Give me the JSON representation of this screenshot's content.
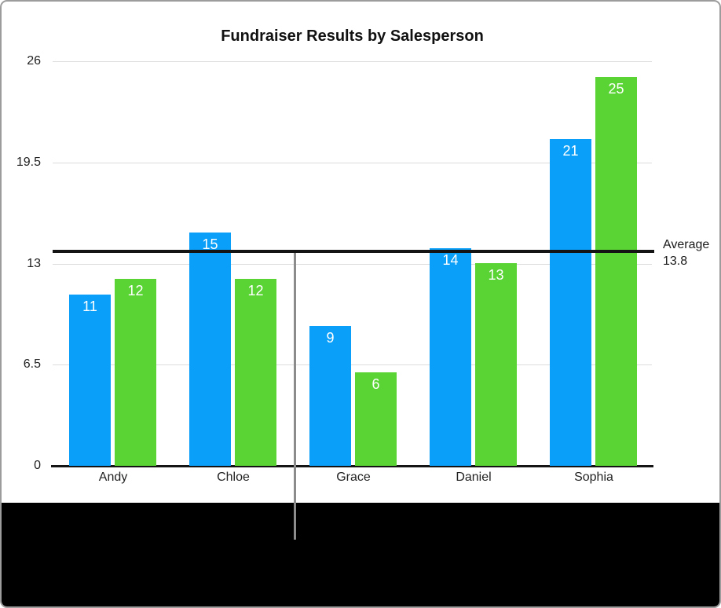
{
  "chart_data": {
    "type": "bar",
    "title": "Fundraiser Results by Salesperson",
    "categories": [
      "Andy",
      "Chloe",
      "Grace",
      "Daniel",
      "Sophia"
    ],
    "series": [
      {
        "name": "blue",
        "color": "#0a9ff9",
        "values": [
          11,
          15,
          9,
          14,
          21
        ]
      },
      {
        "name": "green",
        "color": "#5ad334",
        "values": [
          12,
          12,
          6,
          13,
          25
        ]
      }
    ],
    "y_ticks": [
      0,
      6.5,
      13,
      19.5,
      26
    ],
    "ylim": [
      0,
      26
    ],
    "grid": true,
    "legend": "none",
    "xlabel": "",
    "ylabel": "",
    "annotation": {
      "label_line1": "Average",
      "label_line2": "13.8",
      "value": 13.8
    }
  },
  "colors": {
    "bar_blue": "#0a9ff9",
    "bar_green": "#5ad334",
    "gridline": "#dcdcdc",
    "axis": "#141414",
    "average_line": "#141414",
    "callout_line": "#8c8c8c",
    "frame_border": "#9c9c9c",
    "bottom_panel": "#000000",
    "text": "#222222",
    "bar_value_text": "#ffffff"
  }
}
